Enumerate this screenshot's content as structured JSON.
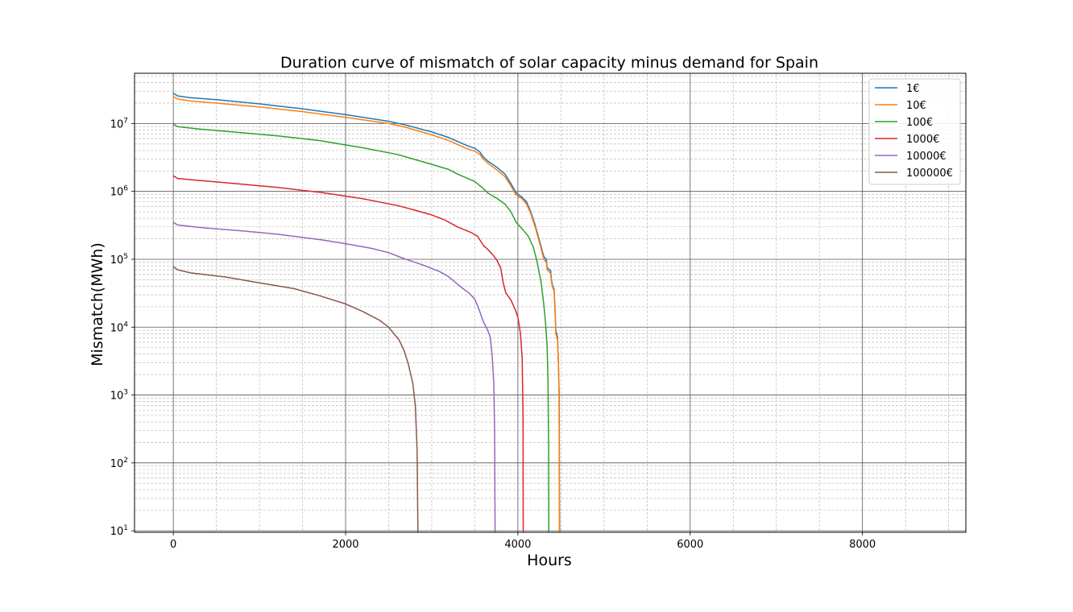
{
  "chart_data": {
    "type": "line",
    "title": "Duration curve of mismatch of solar capacity minus demand for Spain",
    "xlabel": "Hours",
    "ylabel": "Mismatch(MWh)",
    "xlim": [
      -450,
      9200
    ],
    "ylim": [
      9.5,
      55000000
    ],
    "yscale": "log",
    "grid": "major and minor",
    "legend_position": "top-right",
    "x_ticks": [
      0,
      2000,
      4000,
      6000,
      8000
    ],
    "y_ticks": [
      {
        "value": 10,
        "base": "10",
        "exp": "1"
      },
      {
        "value": 100,
        "base": "10",
        "exp": "2"
      },
      {
        "value": 1000,
        "base": "10",
        "exp": "3"
      },
      {
        "value": 10000,
        "base": "10",
        "exp": "4"
      },
      {
        "value": 100000,
        "base": "10",
        "exp": "5"
      },
      {
        "value": 1000000,
        "base": "10",
        "exp": "6"
      },
      {
        "value": 10000000,
        "base": "10",
        "exp": "7"
      }
    ],
    "series": [
      {
        "name": "1€",
        "color": "#1f77b4",
        "points": [
          [
            0,
            28000000
          ],
          [
            50,
            25500000
          ],
          [
            200,
            24000000
          ],
          [
            500,
            22500000
          ],
          [
            1000,
            19500000
          ],
          [
            1500,
            16500000
          ],
          [
            2000,
            13500000
          ],
          [
            2500,
            10800000
          ],
          [
            2700,
            9500000
          ],
          [
            3000,
            7500000
          ],
          [
            3200,
            6200000
          ],
          [
            3400,
            4800000
          ],
          [
            3500,
            4300000
          ],
          [
            3560,
            3800000
          ],
          [
            3600,
            3200000
          ],
          [
            3650,
            2800000
          ],
          [
            3750,
            2300000
          ],
          [
            3850,
            1800000
          ],
          [
            3920,
            1300000
          ],
          [
            3980,
            950000
          ],
          [
            4050,
            820000
          ],
          [
            4100,
            700000
          ],
          [
            4150,
            500000
          ],
          [
            4200,
            320000
          ],
          [
            4260,
            170000
          ],
          [
            4300,
            110000
          ],
          [
            4330,
            100000
          ],
          [
            4340,
            75000
          ],
          [
            4380,
            68000
          ],
          [
            4390,
            50000
          ],
          [
            4400,
            42000
          ],
          [
            4420,
            36000
          ],
          [
            4430,
            20000
          ],
          [
            4440,
            9000
          ],
          [
            4460,
            7000
          ],
          [
            4470,
            3000
          ],
          [
            4480,
            1000
          ],
          [
            4482,
            100
          ],
          [
            4484,
            9.5
          ]
        ]
      },
      {
        "name": "10€",
        "color": "#ff7f0e",
        "points": [
          [
            0,
            25000000
          ],
          [
            50,
            23000000
          ],
          [
            200,
            21500000
          ],
          [
            500,
            20000000
          ],
          [
            1000,
            17500000
          ],
          [
            1500,
            15000000
          ],
          [
            2000,
            12300000
          ],
          [
            2500,
            10000000
          ],
          [
            2700,
            8800000
          ],
          [
            3000,
            6800000
          ],
          [
            3200,
            5600000
          ],
          [
            3400,
            4300000
          ],
          [
            3500,
            3900000
          ],
          [
            3560,
            3500000
          ],
          [
            3600,
            3000000
          ],
          [
            3650,
            2600000
          ],
          [
            3750,
            2100000
          ],
          [
            3850,
            1650000
          ],
          [
            3920,
            1200000
          ],
          [
            3980,
            880000
          ],
          [
            4050,
            780000
          ],
          [
            4100,
            650000
          ],
          [
            4150,
            470000
          ],
          [
            4200,
            300000
          ],
          [
            4260,
            160000
          ],
          [
            4300,
            100000
          ],
          [
            4330,
            90000
          ],
          [
            4340,
            70000
          ],
          [
            4380,
            62000
          ],
          [
            4390,
            46000
          ],
          [
            4400,
            40000
          ],
          [
            4420,
            34000
          ],
          [
            4430,
            18000
          ],
          [
            4440,
            8000
          ],
          [
            4460,
            6500
          ],
          [
            4470,
            2800
          ],
          [
            4478,
            1000
          ],
          [
            4480,
            100
          ],
          [
            4482,
            9.5
          ]
        ]
      },
      {
        "name": "100€",
        "color": "#2ca02c",
        "points": [
          [
            0,
            9800000
          ],
          [
            50,
            9000000
          ],
          [
            300,
            8300000
          ],
          [
            800,
            7300000
          ],
          [
            1200,
            6600000
          ],
          [
            1700,
            5600000
          ],
          [
            2200,
            4400000
          ],
          [
            2600,
            3500000
          ],
          [
            3000,
            2500000
          ],
          [
            3200,
            2100000
          ],
          [
            3300,
            1800000
          ],
          [
            3500,
            1400000
          ],
          [
            3600,
            1100000
          ],
          [
            3650,
            950000
          ],
          [
            3750,
            800000
          ],
          [
            3850,
            650000
          ],
          [
            3920,
            500000
          ],
          [
            3980,
            350000
          ],
          [
            4050,
            280000
          ],
          [
            4120,
            220000
          ],
          [
            4180,
            150000
          ],
          [
            4220,
            95000
          ],
          [
            4270,
            45000
          ],
          [
            4300,
            22000
          ],
          [
            4320,
            12000
          ],
          [
            4340,
            5000
          ],
          [
            4350,
            1500
          ],
          [
            4356,
            200
          ],
          [
            4358,
            9.5
          ]
        ]
      },
      {
        "name": "1000€",
        "color": "#d62728",
        "points": [
          [
            0,
            1700000
          ],
          [
            50,
            1550000
          ],
          [
            300,
            1450000
          ],
          [
            800,
            1280000
          ],
          [
            1200,
            1150000
          ],
          [
            1700,
            970000
          ],
          [
            2200,
            780000
          ],
          [
            2600,
            620000
          ],
          [
            2800,
            530000
          ],
          [
            3000,
            450000
          ],
          [
            3150,
            380000
          ],
          [
            3300,
            300000
          ],
          [
            3450,
            250000
          ],
          [
            3530,
            220000
          ],
          [
            3600,
            160000
          ],
          [
            3650,
            140000
          ],
          [
            3700,
            120000
          ],
          [
            3750,
            100000
          ],
          [
            3800,
            75000
          ],
          [
            3830,
            45000
          ],
          [
            3860,
            32000
          ],
          [
            3920,
            25000
          ],
          [
            3970,
            18000
          ],
          [
            4000,
            14000
          ],
          [
            4030,
            8000
          ],
          [
            4050,
            3500
          ],
          [
            4060,
            500
          ],
          [
            4062,
            9.5
          ]
        ]
      },
      {
        "name": "10000€",
        "color": "#9467bd",
        "points": [
          [
            0,
            350000
          ],
          [
            50,
            320000
          ],
          [
            300,
            295000
          ],
          [
            800,
            262000
          ],
          [
            1200,
            235000
          ],
          [
            1700,
            195000
          ],
          [
            2000,
            170000
          ],
          [
            2300,
            145000
          ],
          [
            2500,
            125000
          ],
          [
            2700,
            100000
          ],
          [
            2900,
            82000
          ],
          [
            3100,
            65000
          ],
          [
            3200,
            55000
          ],
          [
            3280,
            45000
          ],
          [
            3350,
            38000
          ],
          [
            3430,
            32000
          ],
          [
            3500,
            26000
          ],
          [
            3550,
            18000
          ],
          [
            3600,
            12000
          ],
          [
            3650,
            9000
          ],
          [
            3680,
            7000
          ],
          [
            3700,
            4000
          ],
          [
            3720,
            1500
          ],
          [
            3730,
            300
          ],
          [
            3735,
            9.5
          ]
        ]
      },
      {
        "name": "100000€",
        "color": "#8c564b",
        "points": [
          [
            0,
            78000
          ],
          [
            50,
            70000
          ],
          [
            200,
            63000
          ],
          [
            600,
            55000
          ],
          [
            1000,
            45000
          ],
          [
            1400,
            37000
          ],
          [
            1700,
            29000
          ],
          [
            2000,
            22000
          ],
          [
            2200,
            17000
          ],
          [
            2400,
            12500
          ],
          [
            2500,
            10000
          ],
          [
            2560,
            8000
          ],
          [
            2620,
            6500
          ],
          [
            2680,
            4500
          ],
          [
            2730,
            2800
          ],
          [
            2780,
            1500
          ],
          [
            2810,
            700
          ],
          [
            2830,
            150
          ],
          [
            2840,
            9.5
          ]
        ]
      }
    ]
  }
}
